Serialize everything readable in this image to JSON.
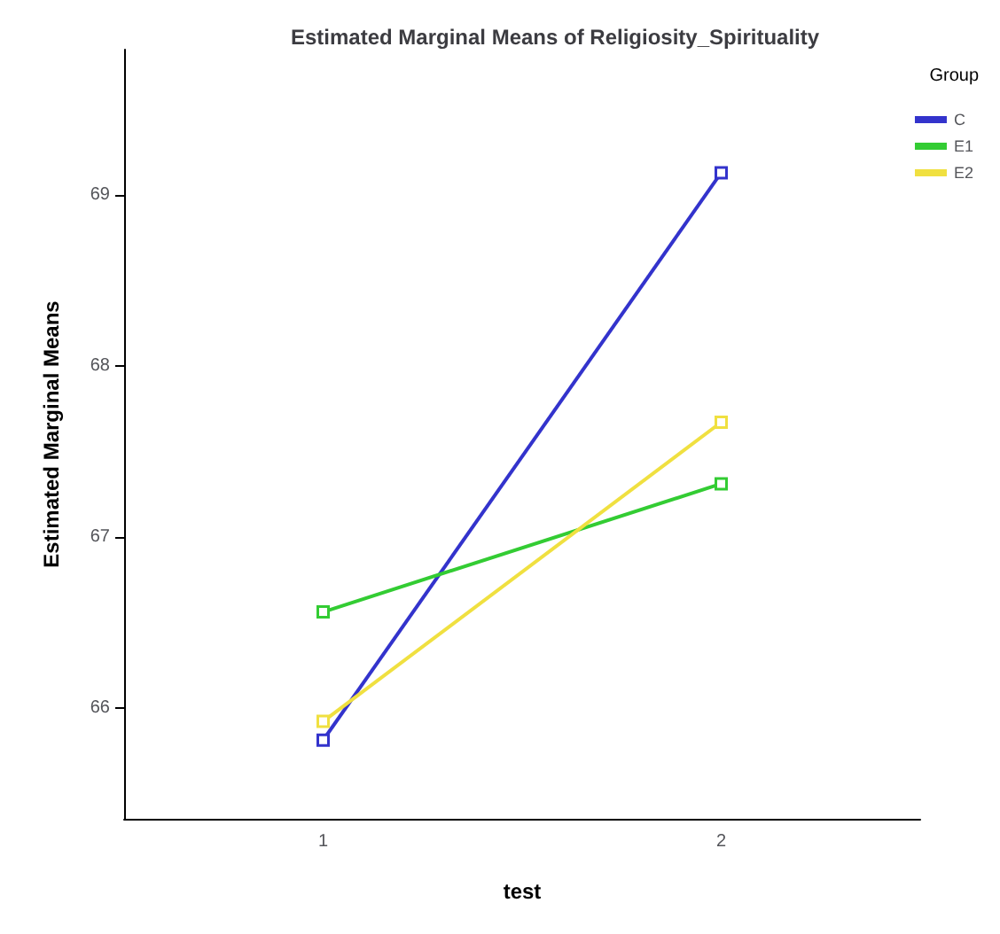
{
  "chart_data": {
    "type": "line",
    "title": "Estimated Marginal Means of Religiosity_Spirituality",
    "xlabel": "test",
    "ylabel": "Estimated Marginal Means",
    "legend_title": "Group",
    "categories": [
      "1",
      "2"
    ],
    "series": [
      {
        "name": "C",
        "color": "#3333cc",
        "values": [
          65.81,
          69.13
        ]
      },
      {
        "name": "E1",
        "color": "#33cc33",
        "values": [
          66.56,
          67.31
        ]
      },
      {
        "name": "E2",
        "color": "#f0e040",
        "values": [
          65.92,
          67.67
        ]
      }
    ],
    "ylim": [
      65.35,
      69.85
    ],
    "yticks": [
      66,
      67,
      68,
      69
    ],
    "grid": false,
    "legend": "top right",
    "marker": "square",
    "line_style": "solid"
  }
}
